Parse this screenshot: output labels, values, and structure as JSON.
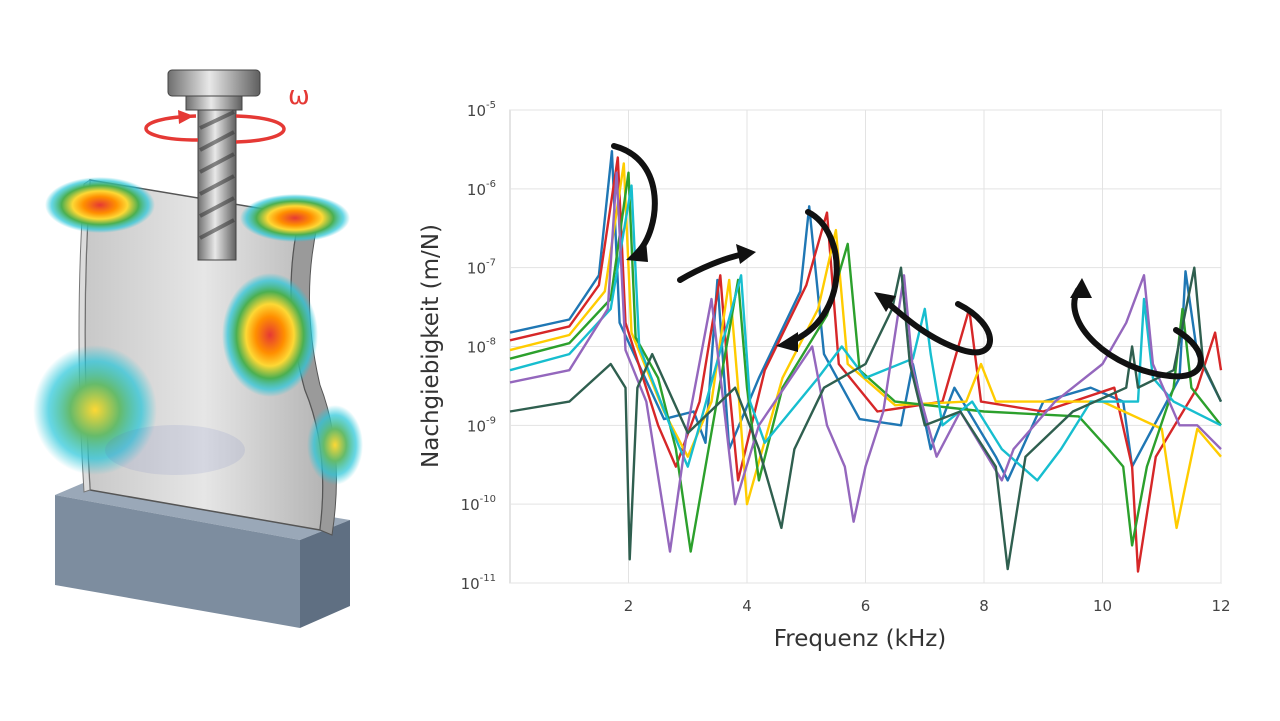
{
  "illustration": {
    "omega_label": "ω",
    "colors": {
      "rotation_arrow": "#e53935",
      "workpiece": "#bfbfbf",
      "base_block": "#8796a8",
      "tool": "#7a7a7a"
    }
  },
  "chart_data": {
    "type": "line",
    "title": "",
    "xlabel": "Frequenz (kHz)",
    "ylabel": "Nachgiebigkeit (m/N)",
    "xlim": [
      0,
      12
    ],
    "ylim": [
      1e-11,
      1e-05
    ],
    "yscale": "log",
    "grid": true,
    "legend": "none",
    "x_ticks": [
      {
        "value": 2,
        "label": "2"
      },
      {
        "value": 4,
        "label": "4"
      },
      {
        "value": 6,
        "label": "6"
      },
      {
        "value": 8,
        "label": "8"
      },
      {
        "value": 10,
        "label": "10"
      },
      {
        "value": 12,
        "label": "12"
      }
    ],
    "y_ticks": [
      {
        "exp": -11,
        "base": "10",
        "sup": "-11"
      },
      {
        "exp": -10,
        "base": "10",
        "sup": "-10"
      },
      {
        "exp": -9,
        "base": "10",
        "sup": "-9"
      },
      {
        "exp": -8,
        "base": "10",
        "sup": "-8"
      },
      {
        "exp": -7,
        "base": "10",
        "sup": "-7"
      },
      {
        "exp": -6,
        "base": "10",
        "sup": "-6"
      },
      {
        "exp": -5,
        "base": "10",
        "sup": "-5"
      }
    ],
    "series": [
      {
        "color": "#1f77b4",
        "points": [
          [
            0,
            1.5e-08
          ],
          [
            1.0,
            2.2e-08
          ],
          [
            1.5,
            8e-08
          ],
          [
            1.72,
            3e-06
          ],
          [
            1.85,
            2e-08
          ],
          [
            2.6,
            1.2e-09
          ],
          [
            3.1,
            1.5e-09
          ],
          [
            3.3,
            6e-10
          ],
          [
            3.5,
            7e-08
          ],
          [
            3.7,
            5e-10
          ],
          [
            4.2,
            4e-09
          ],
          [
            4.9,
            5e-08
          ],
          [
            5.05,
            6e-07
          ],
          [
            5.3,
            8e-09
          ],
          [
            5.9,
            1.2e-09
          ],
          [
            6.6,
            1e-09
          ],
          [
            6.8,
            6e-09
          ],
          [
            7.1,
            5e-10
          ],
          [
            7.5,
            3e-09
          ],
          [
            8.2,
            4e-10
          ],
          [
            8.4,
            2e-10
          ],
          [
            9.0,
            2e-09
          ],
          [
            9.8,
            3e-09
          ],
          [
            10.35,
            2e-09
          ],
          [
            10.5,
            3e-10
          ],
          [
            11.3,
            4e-09
          ],
          [
            11.4,
            9e-08
          ],
          [
            11.6,
            8e-09
          ],
          [
            12,
            2e-09
          ]
        ]
      },
      {
        "color": "#d62728",
        "points": [
          [
            0,
            1.2e-08
          ],
          [
            1.0,
            1.8e-08
          ],
          [
            1.5,
            6e-08
          ],
          [
            1.82,
            2.5e-06
          ],
          [
            1.95,
            2e-08
          ],
          [
            2.5,
            1e-09
          ],
          [
            2.8,
            3e-10
          ],
          [
            3.2,
            2e-09
          ],
          [
            3.55,
            8e-08
          ],
          [
            3.7,
            3e-09
          ],
          [
            3.85,
            2e-10
          ],
          [
            4.3,
            5e-09
          ],
          [
            5.0,
            6e-08
          ],
          [
            5.35,
            5e-07
          ],
          [
            5.55,
            6e-09
          ],
          [
            6.2,
            1.5e-09
          ],
          [
            7.3,
            2e-09
          ],
          [
            7.75,
            3e-08
          ],
          [
            7.95,
            2e-09
          ],
          [
            9.0,
            1.5e-09
          ],
          [
            10.2,
            3e-09
          ],
          [
            10.5,
            3e-10
          ],
          [
            10.6,
            1.4e-11
          ],
          [
            10.9,
            4e-10
          ],
          [
            11.6,
            3e-09
          ],
          [
            11.9,
            1.5e-08
          ],
          [
            12,
            5e-09
          ]
        ]
      },
      {
        "color": "#ffcc00",
        "points": [
          [
            0,
            9e-09
          ],
          [
            1.0,
            1.4e-08
          ],
          [
            1.6,
            5e-08
          ],
          [
            1.92,
            2.1e-06
          ],
          [
            2.05,
            1.5e-08
          ],
          [
            2.6,
            1.5e-09
          ],
          [
            3.0,
            4e-10
          ],
          [
            3.4,
            2e-09
          ],
          [
            3.7,
            7e-08
          ],
          [
            3.85,
            3e-09
          ],
          [
            4.0,
            1e-10
          ],
          [
            4.6,
            4e-09
          ],
          [
            5.2,
            3e-08
          ],
          [
            5.5,
            3e-07
          ],
          [
            5.7,
            6e-09
          ],
          [
            6.5,
            1.8e-09
          ],
          [
            7.7,
            2e-09
          ],
          [
            7.95,
            6e-09
          ],
          [
            8.2,
            2e-09
          ],
          [
            10.0,
            2e-09
          ],
          [
            11.0,
            9e-10
          ],
          [
            11.25,
            5e-11
          ],
          [
            11.6,
            9e-10
          ],
          [
            12,
            4e-10
          ]
        ]
      },
      {
        "color": "#2ca02c",
        "points": [
          [
            0,
            7e-09
          ],
          [
            1.0,
            1.1e-08
          ],
          [
            1.7,
            4e-08
          ],
          [
            2.0,
            1.6e-06
          ],
          [
            2.12,
            1.3e-08
          ],
          [
            2.5,
            4e-09
          ],
          [
            2.8,
            5e-10
          ],
          [
            3.05,
            2.5e-11
          ],
          [
            3.3,
            3e-10
          ],
          [
            3.85,
            7e-08
          ],
          [
            4.0,
            3e-09
          ],
          [
            4.2,
            2e-10
          ],
          [
            4.6,
            3e-09
          ],
          [
            5.35,
            2.5e-08
          ],
          [
            5.7,
            2e-07
          ],
          [
            5.9,
            5e-09
          ],
          [
            6.5,
            2e-09
          ],
          [
            8.0,
            1.5e-09
          ],
          [
            9.6,
            1.3e-09
          ],
          [
            10.1,
            5e-10
          ],
          [
            10.35,
            3e-10
          ],
          [
            10.5,
            3e-11
          ],
          [
            10.75,
            3e-10
          ],
          [
            11.2,
            3e-09
          ],
          [
            11.35,
            3e-08
          ],
          [
            11.5,
            3e-09
          ],
          [
            12,
            1e-09
          ]
        ]
      },
      {
        "color": "#17becf",
        "points": [
          [
            0,
            5e-09
          ],
          [
            1.0,
            8e-09
          ],
          [
            1.7,
            3e-08
          ],
          [
            2.05,
            1.1e-06
          ],
          [
            2.18,
            1e-08
          ],
          [
            2.7,
            1e-09
          ],
          [
            3.0,
            3e-10
          ],
          [
            3.2,
            1e-09
          ],
          [
            3.9,
            8e-08
          ],
          [
            4.05,
            2e-09
          ],
          [
            4.3,
            6e-10
          ],
          [
            5.2,
            4e-09
          ],
          [
            5.6,
            1e-08
          ],
          [
            6.0,
            4e-09
          ],
          [
            6.8,
            7e-09
          ],
          [
            7.0,
            3e-08
          ],
          [
            7.1,
            8e-09
          ],
          [
            7.3,
            1e-09
          ],
          [
            7.8,
            2e-09
          ],
          [
            8.3,
            5e-10
          ],
          [
            8.9,
            2e-10
          ],
          [
            9.3,
            5e-10
          ],
          [
            9.8,
            2e-09
          ],
          [
            10.6,
            2e-09
          ],
          [
            10.7,
            4e-08
          ],
          [
            10.85,
            4e-09
          ],
          [
            11.2,
            2e-09
          ],
          [
            12,
            1e-09
          ]
        ]
      },
      {
        "color": "#9467bd",
        "points": [
          [
            0,
            3.5e-09
          ],
          [
            1.0,
            5e-09
          ],
          [
            1.65,
            3e-08
          ],
          [
            1.8,
            1.6e-06
          ],
          [
            1.95,
            9e-09
          ],
          [
            2.3,
            2e-09
          ],
          [
            2.7,
            2.5e-11
          ],
          [
            3.0,
            1e-09
          ],
          [
            3.4,
            4e-08
          ],
          [
            3.6,
            2e-09
          ],
          [
            3.8,
            1e-10
          ],
          [
            4.2,
            1e-09
          ],
          [
            5.1,
            1e-08
          ],
          [
            5.35,
            1e-09
          ],
          [
            5.65,
            3e-10
          ],
          [
            5.8,
            6e-11
          ],
          [
            6.0,
            3e-10
          ],
          [
            6.3,
            1.5e-09
          ],
          [
            6.65,
            8e-08
          ],
          [
            6.8,
            5e-09
          ],
          [
            7.2,
            4e-10
          ],
          [
            7.6,
            1.5e-09
          ],
          [
            8.3,
            2e-10
          ],
          [
            8.5,
            5e-10
          ],
          [
            9.2,
            2e-09
          ],
          [
            10.0,
            6e-09
          ],
          [
            10.4,
            2e-08
          ],
          [
            10.7,
            8e-08
          ],
          [
            10.85,
            6e-09
          ],
          [
            11.3,
            1e-09
          ],
          [
            11.6,
            1e-09
          ],
          [
            12,
            5e-10
          ]
        ]
      },
      {
        "color": "#2f5f4f",
        "points": [
          [
            0,
            1.5e-09
          ],
          [
            1.0,
            2e-09
          ],
          [
            1.7,
            6e-09
          ],
          [
            1.95,
            3e-09
          ],
          [
            2.02,
            2e-11
          ],
          [
            2.15,
            3e-09
          ],
          [
            2.4,
            8e-09
          ],
          [
            3.0,
            8e-10
          ],
          [
            3.8,
            3e-09
          ],
          [
            4.2,
            5e-10
          ],
          [
            4.58,
            5e-11
          ],
          [
            4.8,
            5e-10
          ],
          [
            5.3,
            3e-09
          ],
          [
            6.0,
            6e-09
          ],
          [
            6.45,
            3e-08
          ],
          [
            6.6,
            1e-07
          ],
          [
            6.75,
            6e-09
          ],
          [
            7.0,
            1e-09
          ],
          [
            7.6,
            1.5e-09
          ],
          [
            8.2,
            3e-10
          ],
          [
            8.4,
            1.5e-11
          ],
          [
            8.7,
            4e-10
          ],
          [
            9.5,
            1.5e-09
          ],
          [
            10.4,
            3e-09
          ],
          [
            10.5,
            1e-08
          ],
          [
            10.6,
            3e-09
          ],
          [
            11.2,
            5e-09
          ],
          [
            11.55,
            1e-07
          ],
          [
            11.7,
            6e-09
          ],
          [
            12,
            2e-09
          ]
        ]
      }
    ]
  }
}
